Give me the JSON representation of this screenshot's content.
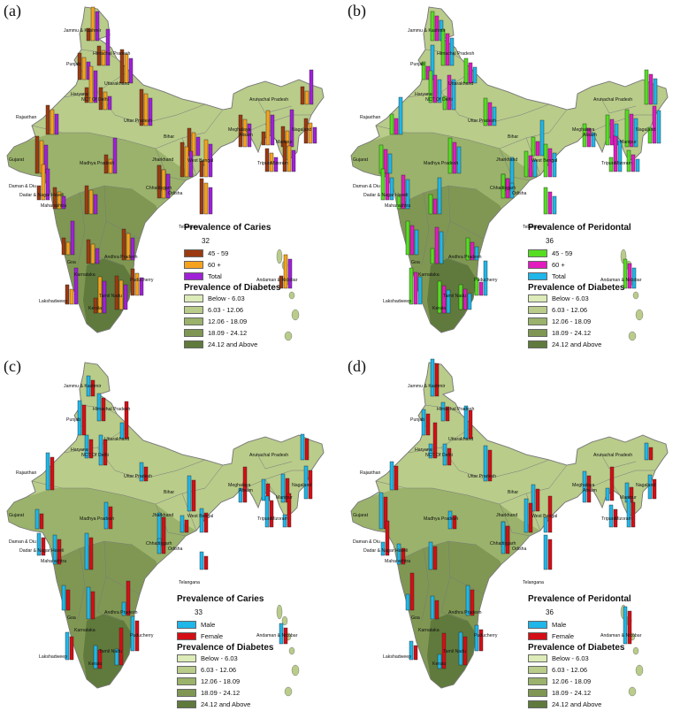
{
  "colors": {
    "diabetes": [
      "#dcebb8",
      "#b9cc8a",
      "#9ab26b",
      "#7f9753",
      "#5f7a3c"
    ],
    "land": "#b8cc8c",
    "border": "#7a7a7a",
    "bars_a": [
      "#9b3a10",
      "#f6a21e",
      "#a020d8"
    ],
    "bars_b": [
      "#55dd22",
      "#e21bbf",
      "#1fb6e9"
    ],
    "bars_cd": [
      "#1fb6e9",
      "#d40e16"
    ]
  },
  "panels": [
    {
      "label": "(a)",
      "legend_title": "Prevalence of Caries",
      "sample_value": "32",
      "series": [
        "45 - 59",
        "60 +",
        "Total"
      ],
      "diabetes_title": "Prevalence of Diabetes"
    },
    {
      "label": "(b)",
      "legend_title": "Prevalence of Peridontal",
      "sample_value": "36",
      "series": [
        "45 - 59",
        "60 +",
        "Total"
      ],
      "diabetes_title": "Prevalence of Diabetes"
    },
    {
      "label": "(c)",
      "legend_title": "Prevalence of Caries",
      "sample_value": "33",
      "series": [
        "Male",
        "Female"
      ],
      "diabetes_title": "Prevalence of Diabetes"
    },
    {
      "label": "(d)",
      "legend_title": "Prevalence of Peridontal",
      "sample_value": "36",
      "series": [
        "Male",
        "Female"
      ],
      "diabetes_title": "Prevalence of Diabetes"
    }
  ],
  "diabetes_classes": [
    "Below - 6.03",
    "6.03 - 12.06",
    "12.06 - 18.09",
    "18.09 - 24.12",
    "24.12 and Above"
  ],
  "states": [
    "Jammu & Kashmir",
    "Himachal Pradesh",
    "Punjab",
    "Uttarakhand",
    "Haryana",
    "NCT Of Delhi",
    "Rajasthan",
    "Uttar Pradesh",
    "Arunachal Pradesh",
    "Nagaland",
    "Meghalaya",
    "Assam",
    "Manipur",
    "Bihar",
    "Jharkhand",
    "West Bengal",
    "Tripura",
    "Mizoram",
    "Gujarat",
    "Madhya Pradesh",
    "Chhattisgarh",
    "Odisha",
    "Daman & Diu",
    "Dadar & Nagar Haveli",
    "Maharashtra",
    "Telangana",
    "Goa",
    "Karnataka",
    "Andhra Pradesh",
    "Andaman & Nicobar",
    "Lakshadweep",
    "Puducherry",
    "Tamil Nadu",
    "Kerala"
  ]
}
